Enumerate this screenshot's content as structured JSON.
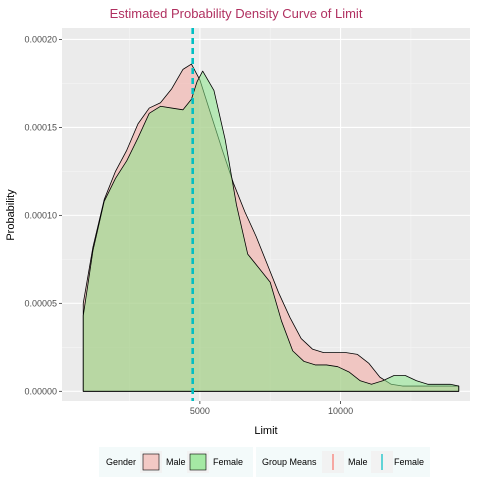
{
  "chart_data": {
    "type": "area",
    "title": "Estimated Probability Density Curve of Limit",
    "xlabel": "Limit",
    "ylabel": "Probability",
    "xlim": [
      100,
      14600
    ],
    "ylim": [
      -5.5e-06,
      0.0002065
    ],
    "x_ticks": [
      5000,
      10000
    ],
    "x_tick_labels": [
      "5000",
      "10000"
    ],
    "y_ticks": [
      0,
      5e-05,
      0.0001,
      0.00015,
      0.0002
    ],
    "y_tick_labels": [
      "0.00000",
      "0.00005",
      "0.00010",
      "0.00015",
      "0.00020"
    ],
    "grid": true,
    "legend_position": "bottom",
    "series": [
      {
        "name": "Male",
        "color": "#F4A7A0",
        "x": [
          855,
          1200,
          1600,
          2000,
          2400,
          2800,
          3200,
          3600,
          4000,
          4400,
          4700,
          5000,
          5400,
          5800,
          6200,
          6600,
          7000,
          7400,
          7800,
          8200,
          8600,
          9000,
          9400,
          9800,
          10200,
          10600,
          11000,
          11400,
          11800,
          12200,
          12600,
          13000,
          13400,
          13800,
          14200
        ],
        "y": [
          5e-05,
          8.2e-05,
          0.000109,
          0.000125,
          0.000137,
          0.000152,
          0.000161,
          0.000164,
          0.000172,
          0.000183,
          0.000186,
          0.000177,
          0.000157,
          0.000137,
          0.000118,
          0.000102,
          8.8e-05,
          7.2e-05,
          5.6e-05,
          4.2e-05,
          3e-05,
          2.4e-05,
          2.2e-05,
          2.2e-05,
          2.2e-05,
          2.1e-05,
          1.6e-05,
          8e-06,
          4e-06,
          3e-06,
          3e-06,
          3e-06,
          3e-06,
          3e-06,
          3e-06
        ]
      },
      {
        "name": "Female",
        "color": "#8BE68A",
        "x": [
          855,
          1200,
          1600,
          2000,
          2400,
          2800,
          3200,
          3600,
          4000,
          4400,
          4700,
          4900,
          5100,
          5500,
          5900,
          6300,
          6700,
          7100,
          7500,
          7900,
          8300,
          8700,
          9100,
          9500,
          9900,
          10300,
          10700,
          11100,
          11500,
          11900,
          12300,
          12700,
          13100,
          13500,
          13900,
          14200
        ],
        "y": [
          4.3e-05,
          8e-05,
          0.000108,
          0.000121,
          0.000131,
          0.000144,
          0.000158,
          0.000162,
          0.000161,
          0.00016,
          0.000166,
          0.000176,
          0.000182,
          0.000171,
          0.000143,
          0.000106,
          7.8e-05,
          7e-05,
          6.2e-05,
          4e-05,
          2.3e-05,
          1.7e-05,
          1.5e-05,
          1.5e-05,
          1.4e-05,
          1.1e-05,
          6e-06,
          4e-06,
          6e-06,
          9e-06,
          9e-06,
          6e-06,
          4e-06,
          4e-06,
          4e-06,
          3e-06
        ]
      }
    ],
    "group_means": [
      {
        "name": "Male",
        "color": "#F8766D",
        "x": 4745
      },
      {
        "name": "Female",
        "color": "#00BFC4",
        "x": 4745
      }
    ],
    "legend": {
      "gender_title": "Gender",
      "gender_items": [
        "Male",
        "Female"
      ],
      "means_title": "Group Means",
      "means_items": [
        "Male",
        "Female"
      ]
    }
  }
}
